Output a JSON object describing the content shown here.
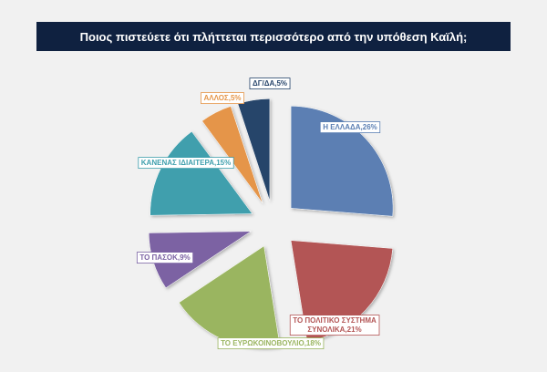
{
  "title": "Ποιος πιστεύετε  ότι πλήττεται περισσότερο από την υπόθεση Καϊλή;",
  "chart_data": {
    "type": "pie",
    "exploded": true,
    "title": "Ποιος πιστεύετε  ότι πλήττεται περισσότερο από την υπόθεση Καϊλή;",
    "slices": [
      {
        "label": "Η ΕΛΛΑΔΑ",
        "value": 26,
        "display": "Η ΕΛΛΑΔΑ,26%",
        "color": "#5b7fb3"
      },
      {
        "label": "ΤΟ ΠΟΛΙΤΙΚΟ ΣΥΣΤΗΜΑ ΣΥΝΟΛΙΚΑ",
        "value": 21,
        "display_lines": [
          "ΤΟ ΠΟΛΙΤΙΚΟ ΣΥΣΤΗΜΑ",
          "ΣΥΝΟΛΙΚΑ,21%"
        ],
        "color": "#b35555"
      },
      {
        "label": "ΤΟ ΕΥΡΩΚΟΙΝΟΒΟΥΛΙΟ",
        "value": 18,
        "display": "ΤΟ ΕΥΡΩΚΟΙΝΟΒΟΥΛΙΟ,18%",
        "color": "#9ab561"
      },
      {
        "label": "ΤΟ ΠΑΣΟΚ",
        "value": 9,
        "display": "ΤΟ ΠΑΣΟΚ,9%",
        "color": "#7b62a3"
      },
      {
        "label": "ΚΑΝΕΝΑΣ ΙΔΙΑΙΤΕΡΑ",
        "value": 15,
        "display": "ΚΑΝΕΝΑΣ ΙΔΙΑΙΤΕΡΑ,15%",
        "color": "#3f9fad"
      },
      {
        "label": "ΑΛΛΟΣ",
        "value": 5,
        "display": "ΑΛΛΟΣ,5%",
        "color": "#e59548"
      },
      {
        "label": "ΔΓ/ΔΑ",
        "value": 5,
        "display": "ΔΓ/ΔΑ,5%",
        "color": "#27456b"
      }
    ]
  }
}
